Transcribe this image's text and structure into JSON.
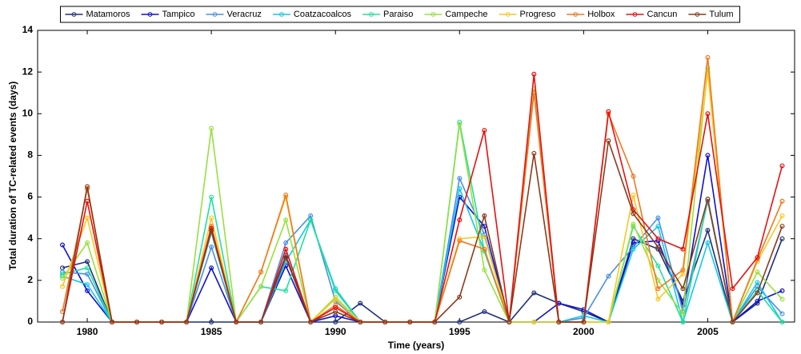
{
  "chart_data": {
    "type": "line",
    "x_label": "Time (years)",
    "y_label": "Total duration of TC-related events (days)",
    "x": [
      1979,
      1980,
      1981,
      1982,
      1983,
      1984,
      1985,
      1986,
      1987,
      1988,
      1989,
      1990,
      1991,
      1992,
      1993,
      1994,
      1995,
      1996,
      1997,
      1998,
      1999,
      2000,
      2001,
      2002,
      2003,
      2004,
      2005,
      2006,
      2007,
      2008
    ],
    "series": [
      {
        "name": "Matamoros",
        "color": "#1f2f7a",
        "values": [
          2.6,
          2.9,
          0,
          0,
          0,
          0,
          0,
          0,
          0,
          3.2,
          0,
          0,
          0.9,
          0,
          0,
          0,
          0,
          0.5,
          0,
          1.4,
          0.9,
          0.5,
          0,
          4.0,
          3.5,
          1.0,
          4.4,
          0,
          0.9,
          4.0
        ]
      },
      {
        "name": "Tampico",
        "color": "#1010d0",
        "values": [
          3.7,
          1.5,
          0,
          0,
          0,
          0,
          2.6,
          0,
          0,
          2.7,
          0,
          0.3,
          0,
          0,
          0,
          0,
          6.0,
          4.6,
          0,
          0,
          0.9,
          0.6,
          0,
          3.8,
          3.9,
          0.8,
          8.0,
          0,
          1.0,
          1.5
        ]
      },
      {
        "name": "Veracruz",
        "color": "#4a90e2",
        "values": [
          2.4,
          2.3,
          0,
          0,
          0,
          0,
          3.6,
          0,
          0,
          3.8,
          5.1,
          1.0,
          0,
          0,
          0,
          0,
          6.9,
          4.2,
          0,
          0,
          0,
          0.2,
          2.2,
          3.6,
          5.0,
          0.5,
          5.8,
          0,
          1.7,
          0.4
        ]
      },
      {
        "name": "Coatzacoalcos",
        "color": "#10c8e8",
        "values": [
          2.2,
          1.8,
          0,
          0,
          0,
          0,
          4.3,
          0,
          0,
          2.9,
          4.9,
          1.6,
          0,
          0,
          0,
          0,
          6.4,
          3.4,
          0,
          0,
          0,
          0.3,
          0,
          3.5,
          4.6,
          0,
          3.8,
          0,
          1.9,
          0
        ]
      },
      {
        "name": "Paraiso",
        "color": "#20e0a0",
        "values": [
          2.3,
          2.6,
          0,
          0,
          0,
          0,
          6.0,
          0,
          1.7,
          1.5,
          4.9,
          1.5,
          0,
          0,
          0,
          0,
          9.6,
          3.4,
          0,
          0,
          0,
          0,
          0,
          4.6,
          2.7,
          0,
          5.9,
          0,
          1.5,
          0
        ]
      },
      {
        "name": "Campeche",
        "color": "#98e040",
        "values": [
          2.1,
          3.8,
          0,
          0,
          0,
          0,
          9.3,
          0,
          1.7,
          4.9,
          0,
          1.2,
          0,
          0,
          0,
          0,
          9.5,
          2.5,
          0,
          11.2,
          0,
          0,
          0,
          4.7,
          2.0,
          0.4,
          12.2,
          0,
          2.4,
          1.1
        ]
      },
      {
        "name": "Progreso",
        "color": "#f8c820",
        "values": [
          1.7,
          5.0,
          0,
          0,
          0,
          0,
          5.0,
          0,
          2.4,
          6.0,
          0,
          1.1,
          0,
          0,
          0,
          0,
          4.0,
          4.1,
          0,
          0,
          0,
          0,
          0,
          6.1,
          1.1,
          2.3,
          12.0,
          0,
          2.9,
          5.1
        ]
      },
      {
        "name": "Holbox",
        "color": "#f07820",
        "values": [
          0.5,
          6.4,
          0,
          0,
          0,
          0,
          4.6,
          0,
          2.4,
          6.1,
          0,
          0.8,
          0,
          0,
          0,
          0,
          3.9,
          3.5,
          0,
          11.0,
          0,
          0,
          10.0,
          7.0,
          1.6,
          2.5,
          12.7,
          0,
          3.0,
          5.8
        ]
      },
      {
        "name": "Cancun",
        "color": "#e81010",
        "values": [
          0,
          5.8,
          0,
          0,
          0,
          0,
          4.5,
          0,
          0,
          3.5,
          0,
          0.7,
          0,
          0,
          0,
          0,
          4.9,
          9.2,
          0,
          11.9,
          0,
          0,
          10.1,
          5.4,
          4.0,
          3.5,
          10.0,
          1.6,
          3.1,
          7.5
        ]
      },
      {
        "name": "Tulum",
        "color": "#8b3a1a",
        "values": [
          0,
          6.5,
          0,
          0,
          0,
          0,
          4.4,
          0,
          0,
          3.1,
          0,
          0.5,
          0,
          0,
          0,
          0,
          1.2,
          5.1,
          0,
          8.1,
          0,
          0,
          8.7,
          5.2,
          3.6,
          1.6,
          5.9,
          0,
          1.4,
          4.6
        ]
      }
    ],
    "xlim": [
      1978,
      2008.5
    ],
    "xticks": [
      1980,
      1985,
      1990,
      1995,
      2000,
      2005
    ],
    "ylim": [
      0,
      14
    ],
    "yticks": [
      0,
      2,
      4,
      6,
      8,
      10,
      12,
      14
    ],
    "legend": "top",
    "markers": true
  }
}
